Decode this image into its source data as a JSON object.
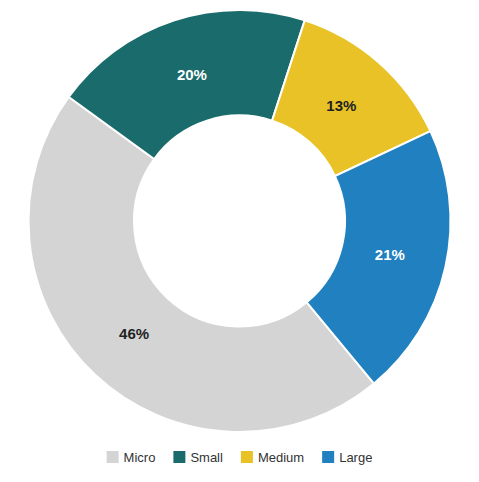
{
  "chart_data": {
    "type": "donut",
    "categories": [
      "Micro",
      "Small",
      "Medium",
      "Large"
    ],
    "values": [
      46,
      20,
      13,
      21
    ],
    "value_labels": [
      "46%",
      "20%",
      "13%",
      "21%"
    ],
    "colors": [
      "#d4d4d4",
      "#1a6b6b",
      "#e8c227",
      "#2080c0"
    ],
    "data_labels": true,
    "legend": "bottom"
  }
}
